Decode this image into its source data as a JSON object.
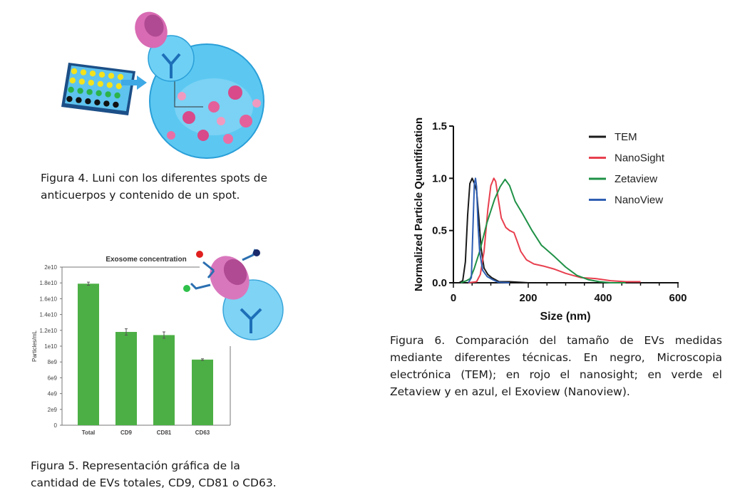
{
  "captions": {
    "fig4": [
      "Figura 4.  Luni con los diferentes spots de",
      "anticuerpos y contenido de un spot."
    ],
    "fig5": [
      "Figura 5. Representación gráfica de la",
      "cantidad de EVs totales, CD9, CD81 o CD63."
    ],
    "fig6": "Figura 6. Comparación del tamaño de EVs medidas mediante diferentes técnicas. En negro, Microscopia electrónica (TEM); en rojo el nanosight; en verde el Zetaview y en azul, el Exoview (Nanoview)."
  },
  "chart_data": [
    {
      "type": "bar",
      "title": "Exosome concentration",
      "ylabel": "Particles/mL",
      "xlabel": "",
      "categories": [
        "Total",
        "CD9",
        "CD81",
        "CD63"
      ],
      "values": [
        17900000000.0,
        11800000000.0,
        11400000000.0,
        8300000000.0
      ],
      "errors": [
        200000000.0,
        400000000.0,
        400000000.0,
        100000000.0
      ],
      "ylim": [
        0,
        20000000000.0
      ],
      "yticks": [
        0,
        2000000000.0,
        4000000000.0,
        6000000000.0,
        8000000000.0,
        10000000000.0,
        12000000000.0,
        14000000000.0,
        16000000000.0,
        18000000000.0,
        20000000000.0
      ],
      "ytick_labels": [
        "0",
        "2e9",
        "4e9",
        "6e9",
        "8e9",
        "1e10",
        "1.2e10",
        "1.4e10",
        "1.6e10",
        "1.8e10",
        "2e10"
      ],
      "color": "#4caf45"
    },
    {
      "type": "line",
      "xlabel": "Size (nm)",
      "ylabel": "Normalized Particle Quantification",
      "xlim": [
        0,
        600
      ],
      "ylim": [
        0,
        1.5
      ],
      "xticks": [
        0,
        200,
        400,
        600
      ],
      "xtick_labels": [
        "0",
        "200",
        "400",
        "600"
      ],
      "yticks": [
        0,
        0.5,
        1.0,
        1.5
      ],
      "ytick_labels": [
        "0.0",
        "0.5",
        "1.0",
        "1.5"
      ],
      "legend_position": "top-right",
      "series": [
        {
          "name": "TEM",
          "color": "#1a1a1a",
          "x": [
            15,
            25,
            32,
            38,
            44,
            50,
            56,
            62,
            68,
            74,
            82,
            92,
            102,
            112,
            122,
            150,
            200
          ],
          "y": [
            0,
            0.02,
            0.2,
            0.65,
            0.95,
            1.0,
            0.95,
            0.88,
            0.62,
            0.33,
            0.14,
            0.08,
            0.05,
            0.03,
            0.01,
            0.01,
            0
          ]
        },
        {
          "name": "NanoSight",
          "color": "#e8404f",
          "x": [
            40,
            62,
            72,
            82,
            92,
            100,
            108,
            113,
            120,
            128,
            140,
            150,
            162,
            170,
            180,
            195,
            215,
            240,
            270,
            300,
            340,
            380,
            420,
            460,
            500
          ],
          "y": [
            0,
            0.01,
            0.08,
            0.3,
            0.7,
            0.93,
            1.0,
            0.97,
            0.8,
            0.62,
            0.53,
            0.5,
            0.48,
            0.4,
            0.3,
            0.22,
            0.18,
            0.16,
            0.13,
            0.09,
            0.05,
            0.04,
            0.02,
            0.01,
            0.01
          ]
        },
        {
          "name": "Zetaview",
          "color": "#1f9146",
          "x": [
            20,
            35,
            45,
            55,
            70,
            90,
            110,
            125,
            138,
            150,
            165,
            185,
            210,
            235,
            270,
            300,
            330,
            360,
            390,
            420,
            460
          ],
          "y": [
            0,
            0.02,
            0.04,
            0.13,
            0.3,
            0.58,
            0.8,
            0.92,
            0.99,
            0.93,
            0.78,
            0.66,
            0.5,
            0.36,
            0.25,
            0.15,
            0.07,
            0.03,
            0.01,
            0,
            0
          ]
        },
        {
          "name": "NanoView",
          "color": "#2f5fb3",
          "x": [
            40,
            48,
            52,
            56,
            59,
            62,
            66,
            70,
            78,
            90,
            105,
            120,
            150
          ],
          "y": [
            0,
            0.05,
            0.5,
            0.95,
            1.0,
            0.92,
            0.55,
            0.3,
            0.12,
            0.06,
            0.03,
            0.005,
            0
          ]
        }
      ]
    }
  ]
}
